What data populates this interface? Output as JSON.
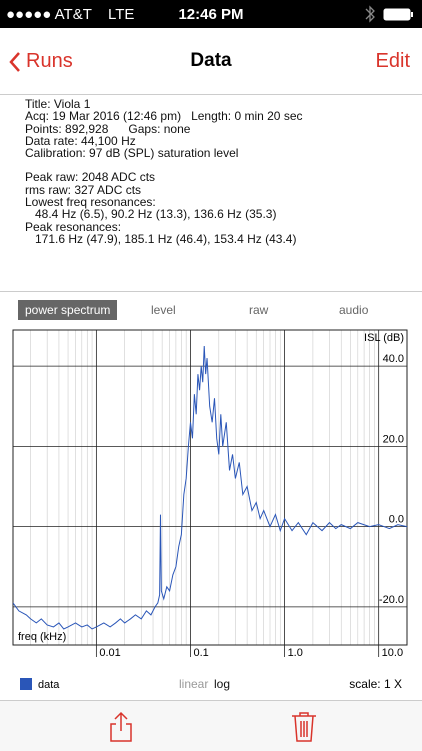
{
  "status_bar": {
    "carrier": "●●●●● AT&T",
    "network": "LTE",
    "time": "12:46 PM"
  },
  "nav": {
    "back": "Runs",
    "title": "Data",
    "action": "Edit"
  },
  "info": {
    "general": [
      "Title: Viola 1",
      "Acq: 19 Mar 2016 (12:46 pm)   Length: 0 min 20 sec",
      "Points: 892,928      Gaps: none",
      "Data rate: 44,100 Hz",
      "Calibration: 97 dB (SPL) saturation level"
    ],
    "peaks": [
      "Peak raw: 2048 ADC cts",
      "rms raw: 327 ADC cts"
    ],
    "resonances": [
      {
        "label": "Lowest freq resonances:",
        "values": "48.4 Hz (6.5), 90.2 Hz (13.3), 136.6 Hz (35.3)"
      },
      {
        "label": "Peak resonances:",
        "values": "171.6 Hz (47.9), 185.1 Hz (46.4), 153.4 Hz (43.4)"
      }
    ]
  },
  "tabs": [
    "power spectrum",
    "level",
    "raw",
    "audio"
  ],
  "chart_data": {
    "type": "line",
    "x_label": "freq (kHz)",
    "y_label": "ISL (dB)",
    "x_scale": "log",
    "grid": true,
    "xlim": [
      0.0013,
      20
    ],
    "ylim": [
      -29.5,
      49
    ],
    "xticks": [
      0.01,
      {
        "value": 0.1,
        "label": "0.1"
      },
      {
        "value": 1,
        "label": "1.0"
      },
      {
        "value": 10,
        "label": "10.0"
      }
    ],
    "yticks": [
      {
        "value": 40,
        "label": "40.0"
      },
      {
        "value": 20,
        "label": "20.0"
      },
      {
        "value": 0,
        "label": "0.0"
      },
      {
        "value": -20,
        "label": "-20.0"
      }
    ],
    "x": [
      0.0013,
      0.0015,
      0.0018,
      0.002,
      0.0023,
      0.0026,
      0.003,
      0.0035,
      0.004,
      0.0045,
      0.005,
      0.006,
      0.007,
      0.008,
      0.009,
      0.01,
      0.012,
      0.014,
      0.016,
      0.018,
      0.02,
      0.023,
      0.026,
      0.03,
      0.034,
      0.038,
      0.042,
      0.045,
      0.047,
      0.048,
      0.049,
      0.052,
      0.056,
      0.06,
      0.065,
      0.07,
      0.075,
      0.08,
      0.085,
      0.09,
      0.095,
      0.1,
      0.105,
      0.11,
      0.115,
      0.12,
      0.125,
      0.13,
      0.135,
      0.14,
      0.145,
      0.15,
      0.16,
      0.17,
      0.18,
      0.19,
      0.2,
      0.21,
      0.22,
      0.24,
      0.26,
      0.28,
      0.3,
      0.33,
      0.36,
      0.4,
      0.45,
      0.5,
      0.55,
      0.6,
      0.7,
      0.8,
      0.9,
      1,
      1.2,
      1.4,
      1.7,
      2,
      2.5,
      3,
      3.5,
      4,
      5,
      6,
      8,
      10,
      13,
      16,
      20
    ],
    "series": [
      {
        "name": "data",
        "color": "#2a56b8",
        "values": [
          -19,
          -21,
          -22,
          -23,
          -24,
          -23,
          -24.5,
          -25,
          -24,
          -25.5,
          -25,
          -24,
          -25,
          -24.5,
          -25.5,
          -25,
          -24,
          -25,
          -24,
          -23,
          -24,
          -23,
          -22,
          -23,
          -21,
          -22,
          -20,
          -19,
          -17,
          3,
          -16,
          -18,
          -15,
          -16,
          -12,
          -10,
          -5,
          -2,
          8,
          12,
          20,
          26,
          22,
          33,
          28,
          38,
          34,
          40,
          36,
          45,
          38,
          42,
          30,
          26,
          32,
          22,
          18,
          28,
          20,
          26,
          14,
          18,
          12,
          16,
          8,
          10,
          4,
          6,
          2,
          4,
          0,
          3,
          -1,
          2,
          -1,
          1,
          -2,
          1,
          -1,
          1,
          -0.5,
          0.5,
          -0.5,
          1,
          0,
          0.5,
          -0.5,
          0.5,
          0
        ]
      }
    ],
    "scale_options": [
      "linear",
      "log"
    ],
    "scale_label": "scale: 1 X"
  }
}
